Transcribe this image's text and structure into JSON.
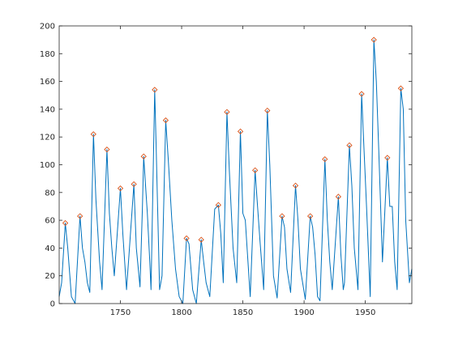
{
  "chart_data": {
    "type": "line",
    "title": "",
    "xlabel": "",
    "ylabel": "",
    "xlim": [
      1700,
      1988
    ],
    "ylim": [
      0,
      200
    ],
    "x_ticks": [
      1750,
      1800,
      1850,
      1900,
      1950
    ],
    "y_ticks": [
      0,
      20,
      40,
      60,
      80,
      100,
      120,
      140,
      160,
      180,
      200
    ],
    "grid": false,
    "legend": "none",
    "series": [
      {
        "style": "line",
        "color": "#0072bd",
        "x": [
          1700,
          1702,
          1705,
          1707,
          1710,
          1713,
          1717,
          1719,
          1721,
          1723,
          1725,
          1728,
          1730,
          1733,
          1735,
          1739,
          1741,
          1743,
          1745,
          1750,
          1752,
          1755,
          1757,
          1761,
          1763,
          1766,
          1768,
          1769,
          1772,
          1774,
          1775,
          1778,
          1779,
          1782,
          1784,
          1787,
          1789,
          1792,
          1795,
          1798,
          1801,
          1804,
          1806,
          1809,
          1812,
          1816,
          1818,
          1820,
          1823,
          1827,
          1830,
          1832,
          1834,
          1837,
          1839,
          1842,
          1845,
          1848,
          1850,
          1852,
          1856,
          1860,
          1862,
          1864,
          1867,
          1870,
          1872,
          1875,
          1878,
          1882,
          1884,
          1886,
          1889,
          1893,
          1895,
          1897,
          1901,
          1905,
          1907,
          1909,
          1911,
          1913,
          1917,
          1919,
          1921,
          1923,
          1928,
          1930,
          1932,
          1933,
          1937,
          1939,
          1941,
          1944,
          1947,
          1949,
          1951,
          1954,
          1957,
          1959,
          1961,
          1964,
          1968,
          1970,
          1972,
          1974,
          1976,
          1979,
          1981,
          1983,
          1986,
          1988
        ],
        "y": [
          5,
          15,
          58,
          40,
          5,
          0,
          63,
          40,
          30,
          15,
          8,
          122,
          75,
          30,
          10,
          111,
          65,
          40,
          20,
          83,
          50,
          10,
          35,
          86,
          40,
          12,
          70,
          106,
          65,
          30,
          10,
          154,
          120,
          10,
          20,
          132,
          105,
          60,
          25,
          5,
          0,
          47,
          43,
          10,
          0,
          46,
          30,
          15,
          5,
          68,
          71,
          50,
          15,
          138,
          95,
          40,
          15,
          124,
          65,
          60,
          5,
          96,
          70,
          45,
          10,
          139,
          100,
          20,
          4,
          63,
          55,
          25,
          8,
          85,
          60,
          25,
          3,
          63,
          55,
          35,
          5,
          2,
          104,
          60,
          30,
          10,
          77,
          36,
          10,
          15,
          114,
          85,
          40,
          10,
          151,
          110,
          70,
          5,
          190,
          160,
          110,
          30,
          105,
          70,
          70,
          30,
          10,
          155,
          140,
          60,
          15,
          25
        ]
      },
      {
        "style": "markers",
        "marker": "diamond",
        "color": "#d95319",
        "x": [
          1705,
          1717,
          1728,
          1739,
          1750,
          1761,
          1769,
          1778,
          1787,
          1804,
          1816,
          1830,
          1837,
          1848,
          1860,
          1870,
          1882,
          1893,
          1905,
          1917,
          1928,
          1937,
          1947,
          1957,
          1968,
          1979
        ],
        "y": [
          58,
          63,
          122,
          111,
          83,
          86,
          106,
          154,
          132,
          47,
          46,
          71,
          138,
          124,
          96,
          139,
          63,
          85,
          63,
          104,
          77,
          114,
          151,
          190,
          105,
          155
        ]
      }
    ]
  }
}
